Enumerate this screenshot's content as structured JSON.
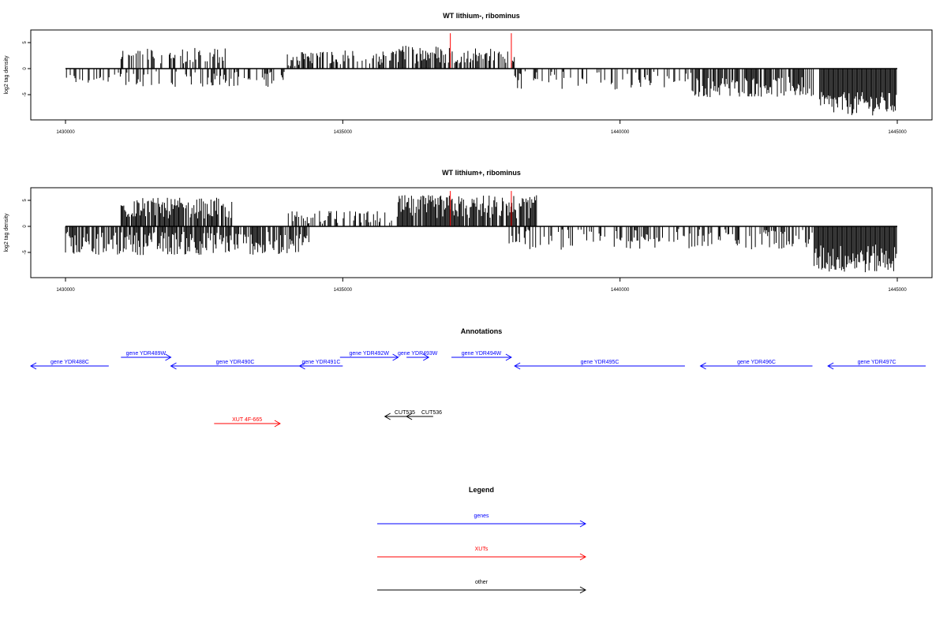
{
  "chart_data": [
    {
      "type": "bar",
      "title": "WT lithium-, ribominus",
      "ylabel": "log2 tag density",
      "xlabel": "",
      "xlim": [
        1429300,
        1446000
      ],
      "ylim": [
        -10,
        8
      ],
      "x_ticks": [
        "1430000",
        "1435000",
        "1440000",
        "1445000"
      ],
      "y_ticks": [
        "5",
        "0",
        "-5"
      ],
      "colors": {
        "data": "#000000",
        "highlight": "#ff0000"
      },
      "series": [
        {
          "values_description_free": true,
          "regions": [
            {
              "x0": 1430000,
              "x1": 1430800,
              "min": -3.0,
              "max": -1.0,
              "sign": "neg",
              "density": 0.35
            },
            {
              "x0": 1431000,
              "x1": 1432900,
              "min": 1.0,
              "max": 4.0,
              "sign": "pos",
              "density": 0.45
            },
            {
              "x0": 1430800,
              "x1": 1434000,
              "min": -3.5,
              "max": -0.5,
              "sign": "neg",
              "density": 0.4
            },
            {
              "x0": 1434000,
              "x1": 1436000,
              "min": 0.5,
              "max": 3.5,
              "sign": "pos",
              "density": 0.6
            },
            {
              "x0": 1436000,
              "x1": 1437000,
              "min": 1.0,
              "max": 4.5,
              "sign": "pos",
              "density": 0.7
            },
            {
              "x0": 1437000,
              "x1": 1438100,
              "min": 1.0,
              "max": 4.0,
              "sign": "pos",
              "density": 0.6
            },
            {
              "x0": 1438100,
              "x1": 1441300,
              "min": -4.0,
              "max": -0.5,
              "sign": "neg",
              "density": 0.35
            },
            {
              "x0": 1441300,
              "x1": 1443500,
              "min": -5.5,
              "max": -1.5,
              "sign": "neg",
              "density": 0.8
            },
            {
              "x0": 1443600,
              "x1": 1445000,
              "min": -9.0,
              "max": -4.5,
              "sign": "neg",
              "density": 1.0
            }
          ],
          "highlights": [
            {
              "x": 1436940,
              "y": 6.8
            },
            {
              "x": 1438040,
              "y": 6.8
            }
          ]
        }
      ]
    },
    {
      "type": "bar",
      "title": "WT lithium+, ribominus",
      "ylabel": "log2 tag density",
      "xlabel": "",
      "xlim": [
        1429300,
        1446000
      ],
      "ylim": [
        -10,
        8
      ],
      "x_ticks": [
        "1430000",
        "1435000",
        "1440000",
        "1445000"
      ],
      "y_ticks": [
        "5",
        "0",
        "-5"
      ],
      "colors": {
        "data": "#000000",
        "highlight": "#ff0000"
      },
      "series": [
        {
          "regions": [
            {
              "x0": 1430000,
              "x1": 1434400,
              "min": -5.5,
              "max": -1.0,
              "sign": "neg",
              "density": 0.8
            },
            {
              "x0": 1431000,
              "x1": 1433000,
              "min": 1.5,
              "max": 5.5,
              "sign": "pos",
              "density": 0.85
            },
            {
              "x0": 1434000,
              "x1": 1436000,
              "min": 0.5,
              "max": 3.0,
              "sign": "pos",
              "density": 0.5
            },
            {
              "x0": 1436000,
              "x1": 1438500,
              "min": 1.5,
              "max": 6.0,
              "sign": "pos",
              "density": 0.9
            },
            {
              "x0": 1438000,
              "x1": 1443500,
              "min": -4.5,
              "max": -0.5,
              "sign": "neg",
              "density": 0.45
            },
            {
              "x0": 1443500,
              "x1": 1445000,
              "min": -9.0,
              "max": -3.5,
              "sign": "neg",
              "density": 1.0
            }
          ],
          "highlights": [
            {
              "x": 1436940,
              "y": 6.8
            },
            {
              "x": 1438040,
              "y": 6.8
            }
          ]
        }
      ]
    }
  ],
  "annotations": {
    "title": "Annotations",
    "features": [
      {
        "label": "gene YDR488C",
        "x0": 1429300,
        "x1": 1430780,
        "strand": "-",
        "row": 1,
        "color": "#0000ff"
      },
      {
        "label": "gene YDR489W",
        "x0": 1431000,
        "x1": 1431900,
        "strand": "+",
        "row": 0,
        "color": "#0000ff"
      },
      {
        "label": "gene YDR490C",
        "x0": 1431900,
        "x1": 1434220,
        "strand": "-",
        "row": 1,
        "color": "#0000ff"
      },
      {
        "label": "gene YDR491C",
        "x0": 1434220,
        "x1": 1435000,
        "strand": "-",
        "row": 1,
        "color": "#0000ff"
      },
      {
        "label": "gene YDR492W",
        "x0": 1434950,
        "x1": 1436000,
        "strand": "+",
        "row": 0,
        "color": "#0000ff"
      },
      {
        "label": "gene YDR493W",
        "x0": 1436150,
        "x1": 1436550,
        "strand": "+",
        "row": 0,
        "color": "#0000ff"
      },
      {
        "label": "gene YDR494W",
        "x0": 1436960,
        "x1": 1438040,
        "strand": "+",
        "row": 0,
        "color": "#0000ff"
      },
      {
        "label": "gene YDR495C",
        "x0": 1438100,
        "x1": 1441170,
        "strand": "-",
        "row": 1,
        "color": "#0000ff"
      },
      {
        "label": "gene YDR496C",
        "x0": 1441450,
        "x1": 1443470,
        "strand": "-",
        "row": 1,
        "color": "#0000ff"
      },
      {
        "label": "gene YDR497C",
        "x0": 1443750,
        "x1": 1446000,
        "strand": "-",
        "row": 1,
        "color": "#0000ff"
      },
      {
        "label": "CUT535",
        "x0": 1435760,
        "x1": 1436200,
        "strand": "-",
        "row": 2,
        "color": "#000000"
      },
      {
        "label": "CUT536",
        "x0": 1436150,
        "x1": 1436630,
        "strand": "-",
        "row": 2,
        "color": "#000000"
      },
      {
        "label": "XUT 4F-665",
        "x0": 1432680,
        "x1": 1433870,
        "strand": "+",
        "row": 3,
        "color": "#ff0000"
      }
    ]
  },
  "legend": {
    "title": "Legend",
    "items": [
      {
        "label": "genes",
        "color": "#0000ff"
      },
      {
        "label": "XUTs",
        "color": "#ff0000"
      },
      {
        "label": "other",
        "color": "#000000"
      }
    ]
  }
}
